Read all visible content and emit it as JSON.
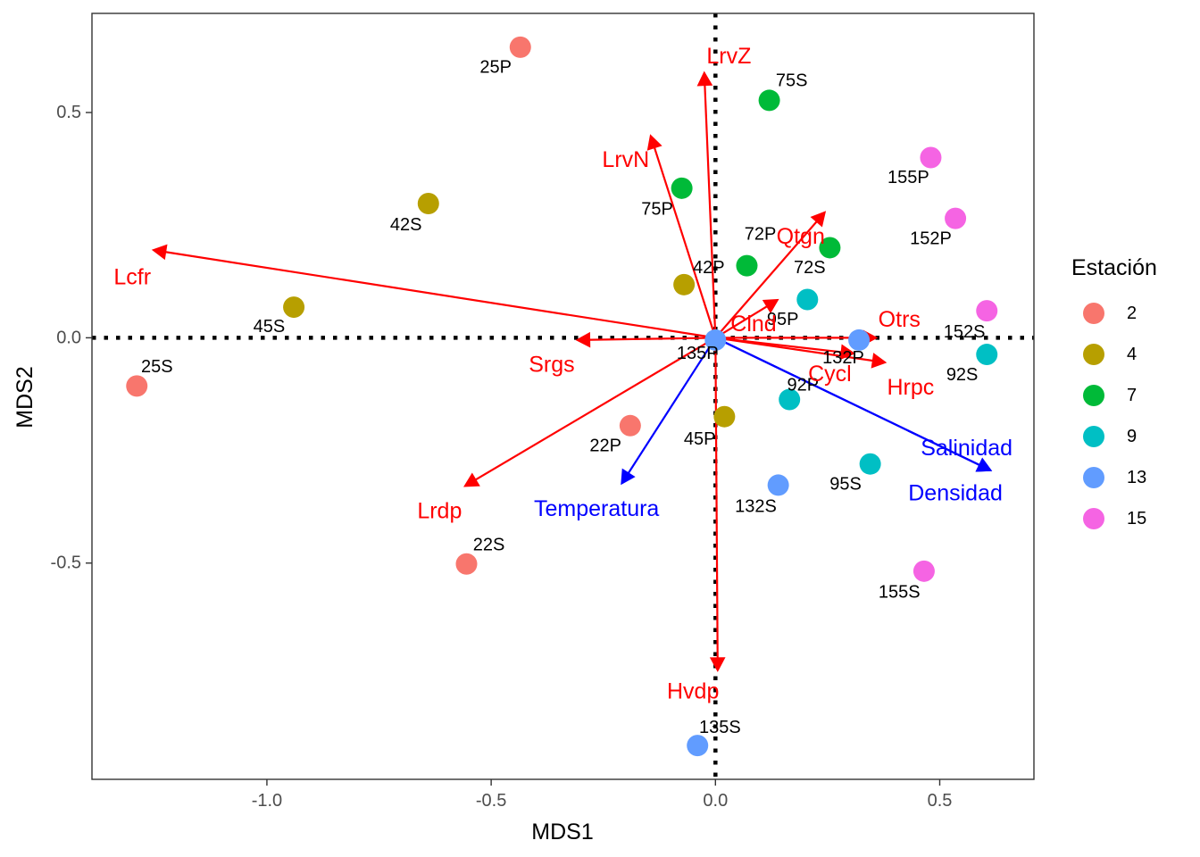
{
  "chart_data": {
    "type": "scatter",
    "xlabel": "MDS1",
    "ylabel": "MDS2",
    "xlim": [
      -1.39,
      0.71
    ],
    "ylim": [
      -0.98,
      0.72
    ],
    "x_ticks": [
      -1.0,
      -0.5,
      0.0,
      0.5
    ],
    "x_tick_labels": [
      "-1.0",
      "-0.5",
      "0.0",
      "0.5"
    ],
    "y_ticks": [
      -0.5,
      0.0,
      0.5
    ],
    "y_tick_labels": [
      "-0.5",
      "0.0",
      "0.5"
    ],
    "grid": false,
    "reference_lines": {
      "x": 0,
      "y": 0,
      "style": "dotted"
    },
    "legend": {
      "title": "Estación",
      "placement": "right",
      "entries": [
        {
          "label": "2",
          "color": "#F8766D"
        },
        {
          "label": "4",
          "color": "#B79F00"
        },
        {
          "label": "7",
          "color": "#00BA38"
        },
        {
          "label": "9",
          "color": "#00BFC4"
        },
        {
          "label": "13",
          "color": "#619CFF"
        },
        {
          "label": "15",
          "color": "#F564E3"
        }
      ]
    },
    "points": [
      {
        "label": "25P",
        "x": -0.435,
        "y": 0.645,
        "station": "2",
        "lx": -0.49,
        "ly": 0.6
      },
      {
        "label": "25S",
        "x": -1.29,
        "y": -0.107,
        "station": "2",
        "lx": -1.245,
        "ly": -0.065
      },
      {
        "label": "22P",
        "x": -0.19,
        "y": -0.195,
        "station": "2",
        "lx": -0.245,
        "ly": -0.24
      },
      {
        "label": "22S",
        "x": -0.555,
        "y": -0.502,
        "station": "2",
        "lx": -0.505,
        "ly": -0.46
      },
      {
        "label": "42S",
        "x": -0.64,
        "y": 0.298,
        "station": "4",
        "lx": -0.69,
        "ly": 0.25
      },
      {
        "label": "45S",
        "x": -0.94,
        "y": 0.068,
        "station": "4",
        "lx": -0.995,
        "ly": 0.025
      },
      {
        "label": "42P",
        "x": -0.07,
        "y": 0.118,
        "station": "4",
        "lx": -0.015,
        "ly": 0.155
      },
      {
        "label": "45P",
        "x": 0.02,
        "y": -0.175,
        "station": "4",
        "lx": -0.035,
        "ly": -0.225
      },
      {
        "label": "75S",
        "x": 0.12,
        "y": 0.527,
        "station": "7",
        "lx": 0.17,
        "ly": 0.57
      },
      {
        "label": "75P",
        "x": -0.075,
        "y": 0.332,
        "station": "7",
        "lx": -0.13,
        "ly": 0.285
      },
      {
        "label": "72P",
        "x": 0.07,
        "y": 0.16,
        "station": "7",
        "lx": 0.1,
        "ly": 0.23
      },
      {
        "label": "72S",
        "x": 0.255,
        "y": 0.2,
        "station": "7",
        "lx": 0.21,
        "ly": 0.155
      },
      {
        "label": "95P",
        "x": 0.205,
        "y": 0.085,
        "station": "9",
        "lx": 0.15,
        "ly": 0.04
      },
      {
        "label": "92P",
        "x": 0.165,
        "y": -0.137,
        "station": "9",
        "lx": 0.195,
        "ly": -0.105
      },
      {
        "label": "95S",
        "x": 0.345,
        "y": -0.28,
        "station": "9",
        "lx": 0.29,
        "ly": -0.325
      },
      {
        "label": "92S",
        "x": 0.605,
        "y": -0.037,
        "station": "9",
        "lx": 0.55,
        "ly": -0.082
      },
      {
        "label": "132P",
        "x": 0.32,
        "y": -0.005,
        "station": "13",
        "lx": 0.285,
        "ly": -0.045
      },
      {
        "label": "132S",
        "x": 0.14,
        "y": -0.327,
        "station": "13",
        "lx": 0.09,
        "ly": -0.375
      },
      {
        "label": "135S",
        "x": -0.04,
        "y": -0.905,
        "station": "13",
        "lx": 0.01,
        "ly": -0.865
      },
      {
        "label": "135P",
        "x": 0.0,
        "y": -0.005,
        "station": "13",
        "lx": -0.04,
        "ly": -0.035
      },
      {
        "label": "155P",
        "x": 0.48,
        "y": 0.4,
        "station": "15",
        "lx": 0.43,
        "ly": 0.355
      },
      {
        "label": "152P",
        "x": 0.535,
        "y": 0.265,
        "station": "15",
        "lx": 0.48,
        "ly": 0.22
      },
      {
        "label": "152S",
        "x": 0.605,
        "y": 0.06,
        "station": "15",
        "lx": 0.555,
        "ly": 0.013
      },
      {
        "label": "155S",
        "x": 0.465,
        "y": -0.518,
        "station": "15",
        "lx": 0.41,
        "ly": -0.565
      }
    ],
    "vectors": [
      {
        "label": "LrvZ",
        "x": -0.025,
        "y": 0.59,
        "group": "species",
        "lx": 0.03,
        "ly": 0.625
      },
      {
        "label": "LrvN",
        "x": -0.145,
        "y": 0.45,
        "group": "species",
        "lx": -0.2,
        "ly": 0.395
      },
      {
        "label": "Lcfr",
        "x": -1.255,
        "y": 0.195,
        "group": "species",
        "lx": -1.3,
        "ly": 0.135
      },
      {
        "label": "Qtgn",
        "x": 0.245,
        "y": 0.28,
        "group": "species",
        "lx": 0.19,
        "ly": 0.225
      },
      {
        "label": "Clnd",
        "x": 0.14,
        "y": 0.085,
        "group": "species",
        "lx": 0.085,
        "ly": 0.03
      },
      {
        "label": "Otrs",
        "x": 0.36,
        "y": 0.0,
        "group": "species",
        "lx": 0.41,
        "ly": 0.04
      },
      {
        "label": "Srgs",
        "x": -0.31,
        "y": -0.005,
        "group": "species",
        "lx": -0.365,
        "ly": -0.06
      },
      {
        "label": "Cycl",
        "x": 0.31,
        "y": -0.035,
        "group": "species",
        "lx": 0.255,
        "ly": -0.08
      },
      {
        "label": "Hrpc",
        "x": 0.38,
        "y": -0.055,
        "group": "species",
        "lx": 0.435,
        "ly": -0.11
      },
      {
        "label": "Lrdp",
        "x": -0.56,
        "y": -0.33,
        "group": "species",
        "lx": -0.615,
        "ly": -0.385
      },
      {
        "label": "Hvdp",
        "x": 0.005,
        "y": -0.74,
        "group": "species",
        "lx": -0.05,
        "ly": -0.785
      },
      {
        "label": "Temperatura",
        "x": -0.21,
        "y": -0.325,
        "group": "environment",
        "lx": -0.265,
        "ly": -0.38
      },
      {
        "label": "Salinidad",
        "x": 0.615,
        "y": -0.295,
        "group": "environment",
        "lx": 0.56,
        "ly": -0.245
      },
      {
        "label": "Densidad",
        "x": 0.615,
        "y": -0.295,
        "group": "environment",
        "lx": 0.535,
        "ly": -0.345
      }
    ],
    "vector_colors": {
      "species": "#FF0000",
      "environment": "#0000FF"
    }
  }
}
